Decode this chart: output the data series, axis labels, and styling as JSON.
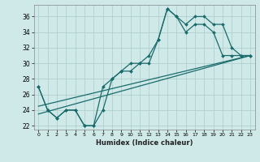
{
  "title": "",
  "xlabel": "Humidex (Indice chaleur)",
  "bg_color": "#cfe8e8",
  "line_color": "#1a6b6b",
  "grid_color": "#b0d0d0",
  "x_values": [
    0,
    1,
    2,
    3,
    4,
    5,
    6,
    7,
    8,
    9,
    10,
    11,
    12,
    13,
    14,
    15,
    16,
    17,
    18,
    19,
    20,
    21,
    22,
    23
  ],
  "line_jagged": [
    27,
    24,
    23,
    24,
    24,
    22,
    22,
    24,
    28,
    29,
    29,
    30,
    30,
    33,
    37,
    36,
    34,
    35,
    35,
    34,
    31,
    31,
    31,
    31
  ],
  "line_upper": [
    27,
    24,
    23,
    24,
    24,
    22,
    22,
    27,
    28,
    29,
    30,
    30,
    31,
    33,
    37,
    36,
    35,
    36,
    36,
    35,
    35,
    32,
    31,
    31
  ],
  "trend1_x": [
    0,
    23
  ],
  "trend1_y": [
    24.5,
    31.0
  ],
  "trend2_x": [
    0,
    23
  ],
  "trend2_y": [
    23.5,
    31.0
  ],
  "ylim": [
    21.5,
    37.5
  ],
  "xlim": [
    -0.5,
    23.5
  ],
  "yticks": [
    22,
    24,
    26,
    28,
    30,
    32,
    34,
    36
  ],
  "xtick_labels": [
    "0",
    "1",
    "2",
    "3",
    "4",
    "5",
    "6",
    "7",
    "8",
    "9",
    "10",
    "11",
    "12",
    "13",
    "14",
    "15",
    "16",
    "17",
    "18",
    "19",
    "20",
    "21",
    "22",
    "23"
  ]
}
